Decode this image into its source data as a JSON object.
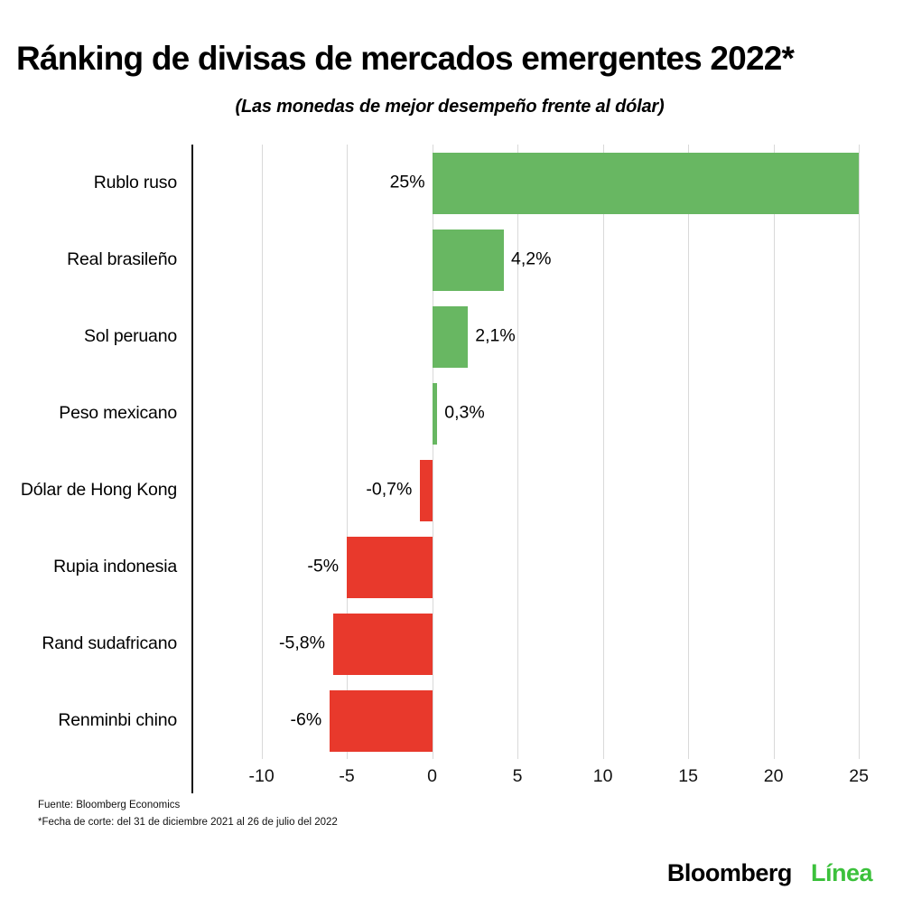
{
  "header": {
    "title": "Ránking de divisas de mercados emergentes 2022*",
    "subtitle": "(Las monedas de mejor desempeño frente al dólar)"
  },
  "chart_data": {
    "type": "bar",
    "orientation": "horizontal",
    "title": "Ránking de divisas de mercados emergentes 2022*",
    "subtitle": "(Las monedas de mejor desempeño frente al dólar)",
    "categories": [
      "Rublo ruso",
      "Real brasileño",
      "Sol peruano",
      "Peso mexicano",
      "Dólar de Hong Kong",
      "Rupia indonesia",
      "Rand sudafricano",
      "Renminbi chino"
    ],
    "values": [
      25,
      4.2,
      2.1,
      0.3,
      -0.7,
      -5,
      -5.8,
      -6
    ],
    "value_labels": [
      "25%",
      "4,2%",
      "2,1%",
      "0,3%",
      "-0,7%",
      "-5%",
      "-5,8%",
      "-6%"
    ],
    "label_side": [
      "start",
      "end",
      "end",
      "end",
      "end",
      "end",
      "end",
      "end"
    ],
    "x_ticks": [
      -10,
      -5,
      0,
      5,
      10,
      15,
      20,
      25
    ],
    "xlim": [
      -14,
      26
    ],
    "grid": true,
    "legend": "none",
    "positive_color": "#68b762",
    "negative_color": "#e8392c",
    "gridline_color": "#d9d9d9"
  },
  "footer": {
    "source": "Fuente: Bloomberg Economics",
    "note": "*Fecha de corte: del 31 de diciembre 2021 al 26 de julio del 2022",
    "logo": {
      "brand": "Bloomberg",
      "brand_accent": "Línea",
      "accent_color": "#3cc13c"
    }
  }
}
